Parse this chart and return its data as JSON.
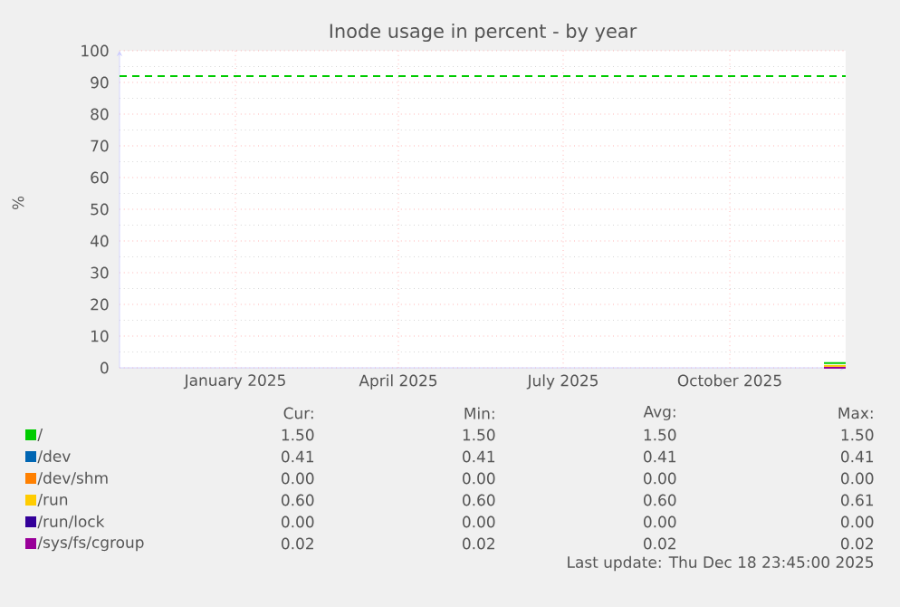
{
  "chart_data": {
    "type": "line",
    "title": "Inode usage in percent - by year",
    "ylabel": "%",
    "x": [
      "2025-12-06",
      "2025-12-18"
    ],
    "xlim": [
      "2024-11-12",
      "2025-12-18"
    ],
    "xticks": [
      {
        "value": "2025-01-15",
        "label": "January 2025"
      },
      {
        "value": "2025-04-15",
        "label": "April 2025"
      },
      {
        "value": "2025-07-15",
        "label": "July 2025"
      },
      {
        "value": "2025-10-15",
        "label": "October 2025"
      }
    ],
    "ylim": [
      0,
      100
    ],
    "yticks": [
      0,
      10,
      20,
      30,
      40,
      50,
      60,
      70,
      80,
      90,
      100
    ],
    "grid": true,
    "legend": "bottom",
    "line_style": "solid",
    "series": [
      {
        "name": "/",
        "color": "#00cc00",
        "values": [
          1.5,
          1.5
        ]
      },
      {
        "name": "/dev",
        "color": "#0066b3",
        "values": [
          null,
          null
        ]
      },
      {
        "name": "/dev/shm",
        "color": "#ff8000",
        "values": [
          null,
          null
        ]
      },
      {
        "name": "/run",
        "color": "#ffcc00",
        "values": [
          0.6,
          0.6
        ]
      },
      {
        "name": "/run/lock",
        "color": "#330099",
        "values": [
          null,
          null
        ]
      },
      {
        "name": "/sys/fs/cgroup",
        "color": "#990099",
        "values": [
          0.02,
          0.02
        ]
      }
    ],
    "ref_lines": [
      {
        "axis": "y",
        "value": 92,
        "color": "#00cc00",
        "line_style": "dashed"
      }
    ],
    "annotations": [
      "Cur:",
      "Min:",
      "Avg:",
      "Max:",
      "1.50",
      "1.50",
      "1.50",
      "1.50",
      "0.41",
      "0.41",
      "0.41",
      "0.41",
      "0.00",
      "0.00",
      "0.00",
      "0.00",
      "0.60",
      "0.60",
      "0.60",
      "0.61",
      "0.00",
      "0.00",
      "0.00",
      "0.00",
      "0.02",
      "0.02",
      "0.02",
      "0.02",
      "Last update: Thu Dec 18 23:45:00 2025"
    ]
  }
}
